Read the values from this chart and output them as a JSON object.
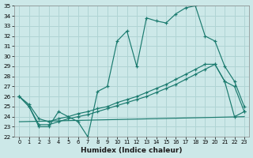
{
  "xlabel": "Humidex (Indice chaleur)",
  "background_color": "#cce8e8",
  "grid_color": "#b0d4d4",
  "line_color": "#1a7a6e",
  "xlim": [
    -0.5,
    23.5
  ],
  "ylim": [
    22,
    35
  ],
  "xticks": [
    0,
    1,
    2,
    3,
    4,
    5,
    6,
    7,
    8,
    9,
    10,
    11,
    12,
    13,
    14,
    15,
    16,
    17,
    18,
    19,
    20,
    21,
    22,
    23
  ],
  "yticks": [
    22,
    23,
    24,
    25,
    26,
    27,
    28,
    29,
    30,
    31,
    32,
    33,
    34,
    35
  ],
  "line1_x": [
    0,
    1,
    2,
    3,
    4,
    5,
    6,
    7,
    8,
    9,
    10,
    11,
    12,
    13,
    14,
    15,
    16,
    17,
    18,
    19,
    20,
    21,
    22,
    23
  ],
  "line1_y": [
    26.0,
    25.0,
    23.0,
    23.0,
    24.5,
    24.0,
    23.5,
    22.0,
    26.5,
    27.0,
    31.5,
    32.5,
    29.0,
    33.8,
    33.5,
    33.3,
    34.2,
    34.8,
    35.0,
    32.0,
    31.5,
    29.0,
    27.5,
    25.0
  ],
  "line2_x": [
    0,
    1,
    2,
    3,
    4,
    5,
    6,
    7,
    8,
    9,
    10,
    11,
    12,
    13,
    14,
    15,
    16,
    17,
    18,
    19,
    20,
    21,
    22,
    23
  ],
  "line2_y": [
    26.0,
    25.2,
    23.8,
    23.5,
    23.8,
    24.0,
    24.3,
    24.5,
    24.8,
    25.0,
    25.4,
    25.7,
    26.0,
    26.4,
    26.8,
    27.2,
    27.7,
    28.2,
    28.7,
    29.2,
    29.2,
    27.5,
    27.0,
    24.5
  ],
  "line3_x": [
    0,
    23
  ],
  "line3_y": [
    23.5,
    24.0
  ],
  "line4_x": [
    0,
    1,
    2,
    3,
    4,
    5,
    6,
    7,
    8,
    9,
    10,
    11,
    12,
    13,
    14,
    15,
    16,
    17,
    18,
    19,
    20,
    21,
    22,
    23
  ],
  "line4_y": [
    26.0,
    25.0,
    23.2,
    23.2,
    23.5,
    23.8,
    24.0,
    24.2,
    24.5,
    24.8,
    25.1,
    25.4,
    25.7,
    26.0,
    26.4,
    26.8,
    27.2,
    27.7,
    28.2,
    28.7,
    29.2,
    27.5,
    24.0,
    24.5
  ]
}
